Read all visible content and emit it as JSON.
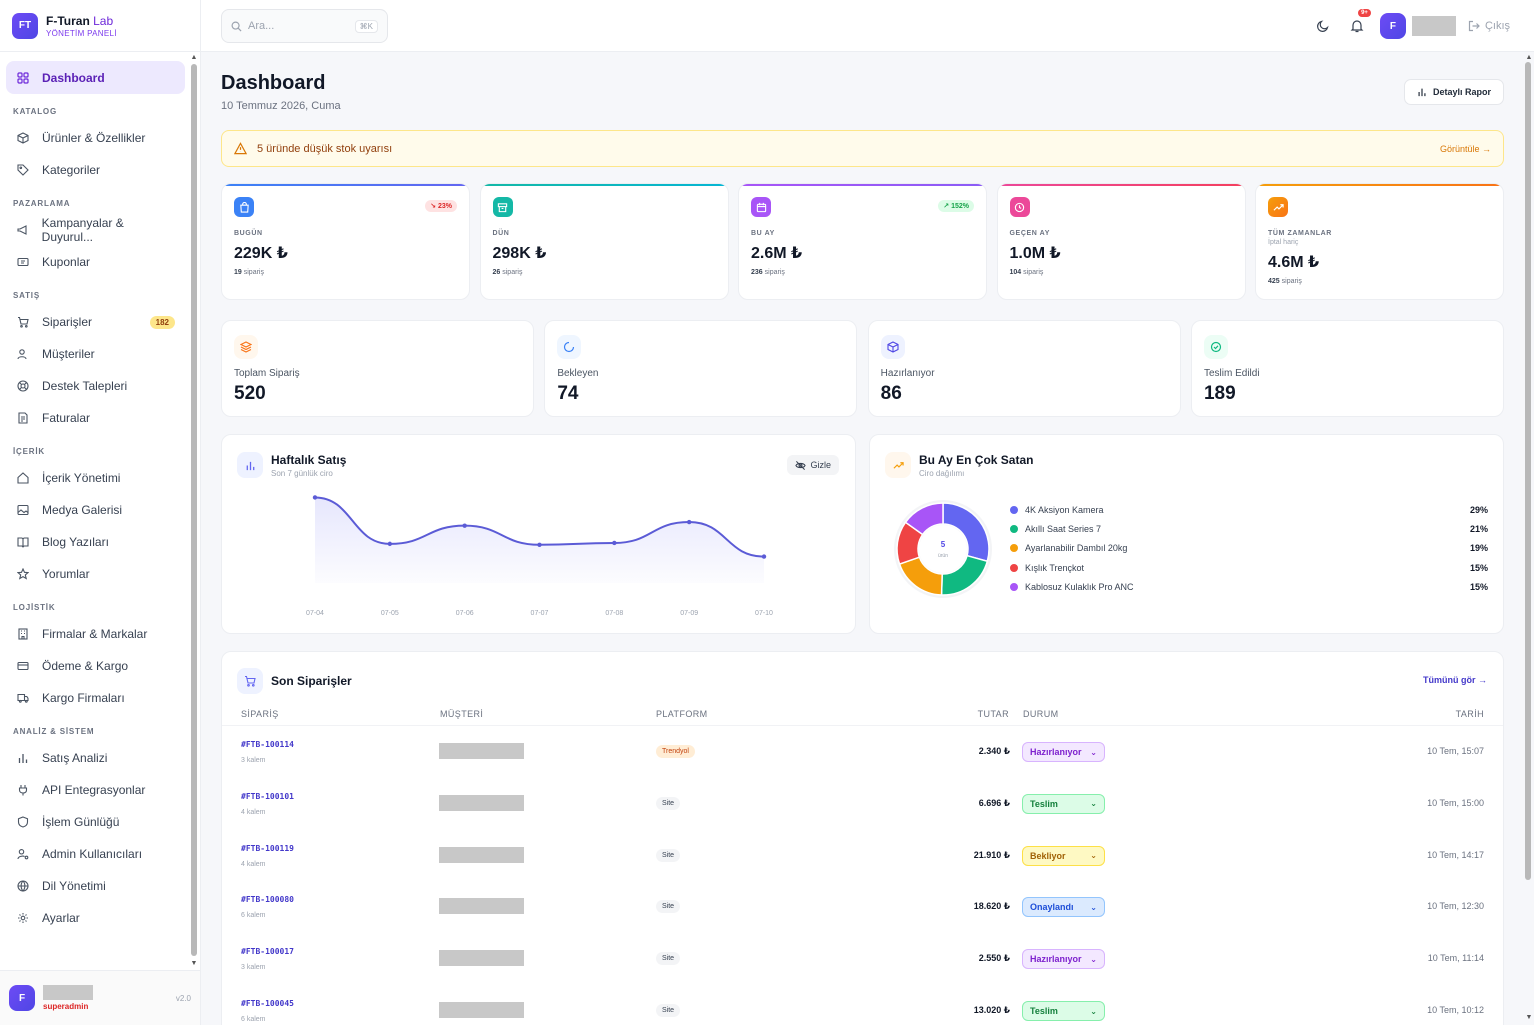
{
  "brand": {
    "logo": "FT",
    "name": "F-Turan",
    "name_accent": "Lab",
    "subtitle": "YÖNETİM PANELİ"
  },
  "search": {
    "placeholder": "Ara...",
    "shortcut": "⌘K"
  },
  "topbar": {
    "notif_count": "9+",
    "user_initial": "F",
    "logout": "Çıkış"
  },
  "sidebar": {
    "dashboard": "Dashboard",
    "sections": {
      "katalog": "KATALOG",
      "pazarlama": "PAZARLAMA",
      "satis": "SATIŞ",
      "icerik": "İÇERİK",
      "lojistik": "LOJİSTİK",
      "analiz": "ANALİZ & SİSTEM"
    },
    "items": {
      "urunler": "Ürünler & Özellikler",
      "kategoriler": "Kategoriler",
      "kampanyalar": "Kampanyalar & Duyurul...",
      "kuponlar": "Kuponlar",
      "siparisler": "Siparişler",
      "siparisler_badge": "182",
      "musteriler": "Müşteriler",
      "destek": "Destek Talepleri",
      "faturalar": "Faturalar",
      "icerik": "İçerik Yönetimi",
      "medya": "Medya Galerisi",
      "blog": "Blog Yazıları",
      "yorumlar": "Yorumlar",
      "firmalar": "Firmalar & Markalar",
      "odeme": "Ödeme & Kargo",
      "kargo": "Kargo Firmaları",
      "satis_analizi": "Satış Analizi",
      "api": "API Entegrasyonlar",
      "islem": "İşlem Günlüğü",
      "admin": "Admin Kullanıcıları",
      "dil": "Dil Yönetimi",
      "ayarlar": "Ayarlar"
    },
    "user": {
      "initial": "F",
      "role": "superadmin",
      "version": "v2.0"
    }
  },
  "page": {
    "title": "Dashboard",
    "date": "10 Temmuz 2026, Cuma",
    "report_button": "Detaylı Rapor"
  },
  "alert": {
    "text": "5 üründe düşük stok uyarısı",
    "link": "Görüntüle →"
  },
  "kpis": [
    {
      "label": "BUGÜN",
      "value": "229K ₺",
      "count": "19",
      "count_label": "sipariş",
      "delta": "↘ 23%",
      "color": "#3b82f6"
    },
    {
      "label": "DÜN",
      "value": "298K ₺",
      "count": "26",
      "count_label": "sipariş",
      "color": "#14b8a6"
    },
    {
      "label": "BU AY",
      "value": "2.6M ₺",
      "count": "236",
      "count_label": "sipariş",
      "delta": "↗ 152%",
      "color": "#a855f7"
    },
    {
      "label": "GEÇEN AY",
      "value": "1.0M ₺",
      "count": "104",
      "count_label": "sipariş",
      "color": "#ec4899"
    },
    {
      "label": "TÜM ZAMANLAR",
      "sublabel": "İptal hariç",
      "value": "4.6M ₺",
      "count": "425",
      "count_label": "sipariş",
      "color": "#f59e0b"
    }
  ],
  "stats": [
    {
      "label": "Toplam Sipariş",
      "value": "520"
    },
    {
      "label": "Bekleyen",
      "value": "74"
    },
    {
      "label": "Hazırlanıyor",
      "value": "86"
    },
    {
      "label": "Teslim Edildi",
      "value": "189"
    }
  ],
  "weekly": {
    "title": "Haftalık Satış",
    "subtitle": "Son 7 günlük ciro",
    "hide_button": "Gizle"
  },
  "top": {
    "title": "Bu Ay En Çok Satan",
    "subtitle": "Ciro dağılımı",
    "center_value": "5",
    "center_label": "ürün"
  },
  "chart_data": [
    {
      "type": "area",
      "title": "Haftalık Satış",
      "x": [
        "07-04",
        "07-05",
        "07-06",
        "07-07",
        "07-08",
        "07-09",
        "07-10"
      ],
      "values": [
        0.94,
        0.43,
        0.63,
        0.42,
        0.44,
        0.67,
        0.29
      ],
      "values_note": "relative heights; no y-axis printed",
      "color": "#5b5bd6"
    },
    {
      "type": "pie",
      "title": "Bu Ay En Çok Satan",
      "categories": [
        "4K Aksiyon Kamera",
        "Akıllı Saat Series 7",
        "Ayarlanabilir Dambıl 20kg",
        "Kışlık Trençkot",
        "Kablosuz Kulaklık Pro ANC"
      ],
      "values": [
        29,
        21,
        19,
        15,
        15
      ],
      "labels": [
        "29%",
        "21%",
        "19%",
        "15%",
        "15%"
      ],
      "colors": [
        "#6366f1",
        "#10b981",
        "#f59e0b",
        "#ef4444",
        "#a855f7"
      ]
    }
  ],
  "orders": {
    "title": "Son Siparişler",
    "see_all": "Tümünü gör →",
    "columns": {
      "order": "SİPARİŞ",
      "customer": "MÜŞTERİ",
      "platform": "PLATFORM",
      "amount": "TUTAR",
      "status": "DURUM",
      "date": "TARİH"
    },
    "rows": [
      {
        "id": "#FTB-100114",
        "items": "3 kalem",
        "platform": "Trendyol",
        "amount": "2.340 ₺",
        "status": "Hazırlanıyor",
        "date": "10 Tem, 15:07"
      },
      {
        "id": "#FTB-100101",
        "items": "4 kalem",
        "platform": "Site",
        "amount": "6.696 ₺",
        "status": "Teslim",
        "date": "10 Tem, 15:00"
      },
      {
        "id": "#FTB-100119",
        "items": "4 kalem",
        "platform": "Site",
        "amount": "21.910 ₺",
        "status": "Bekliyor",
        "date": "10 Tem, 14:17"
      },
      {
        "id": "#FTB-100080",
        "items": "6 kalem",
        "platform": "Site",
        "amount": "18.620 ₺",
        "status": "Onaylandı",
        "date": "10 Tem, 12:30"
      },
      {
        "id": "#FTB-100017",
        "items": "3 kalem",
        "platform": "Site",
        "amount": "2.550 ₺",
        "status": "Hazırlanıyor",
        "date": "10 Tem, 11:14"
      },
      {
        "id": "#FTB-100045",
        "items": "6 kalem",
        "platform": "Site",
        "amount": "13.020 ₺",
        "status": "Teslim",
        "date": "10 Tem, 10:12"
      }
    ]
  },
  "status_colors": {
    "Hazırlanıyor": {
      "bg": "#f3e8ff",
      "border": "#d8b4fe",
      "fg": "#7e22ce"
    },
    "Teslim": {
      "bg": "#dcfce7",
      "border": "#86efac",
      "fg": "#15803d"
    },
    "Bekliyor": {
      "bg": "#fef9c3",
      "border": "#fde047",
      "fg": "#a16207"
    },
    "Onaylandı": {
      "bg": "#dbeafe",
      "border": "#93c5fd",
      "fg": "#1d4ed8"
    }
  }
}
